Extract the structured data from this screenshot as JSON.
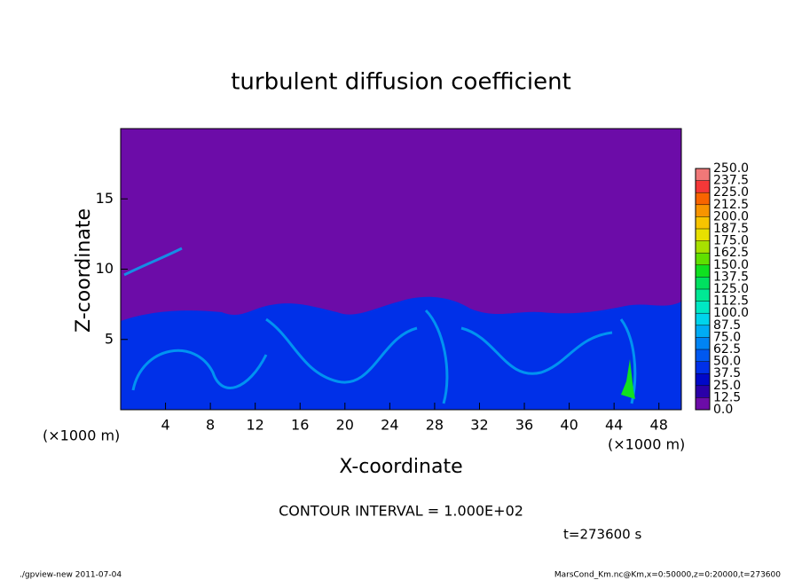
{
  "chart_data": {
    "type": "contour",
    "title": "turbulent diffusion coefficient",
    "x_label": "X-coordinate",
    "y_label": "Z-coordinate",
    "x_unit_left": "(×1000 m)",
    "x_unit_right": "(×1000 m)",
    "xlim": [
      0,
      50
    ],
    "ylim": [
      0,
      20
    ],
    "xticks": [
      4,
      8,
      12,
      16,
      20,
      24,
      28,
      32,
      36,
      40,
      44,
      48
    ],
    "yticks": [
      5,
      10,
      15
    ],
    "colorbar": {
      "levels": [
        {
          "value": 0,
          "label": "0.0"
        },
        12.5,
        {
          "value": 25,
          "label": "25.0"
        },
        37.5,
        {
          "value": 50,
          "label": "50.0"
        },
        62.5,
        {
          "value": 75,
          "label": "75.0"
        },
        87.5,
        {
          "value": 100,
          "label": "100.0"
        },
        112.5,
        {
          "value": 125,
          "label": "125.0"
        },
        137.5,
        {
          "value": 150,
          "label": "150.0"
        },
        162.5,
        {
          "value": 175,
          "label": "175.0"
        },
        187.5,
        {
          "value": 200,
          "label": "200.0"
        },
        212.5,
        {
          "value": 225,
          "label": "225.0"
        },
        237.5,
        {
          "value": 250,
          "label": "250.0"
        }
      ],
      "colors": [
        "#6c0ca8",
        "#2a00a8",
        "#0008c8",
        "#0030e8",
        "#0058f0",
        "#0084f4",
        "#00acf4",
        "#00d4ec",
        "#00e8c4",
        "#00e894",
        "#00e060",
        "#10e020",
        "#60e000",
        "#a8e000",
        "#e8e000",
        "#f8c400",
        "#f89400",
        "#f86400",
        "#f43838",
        "#f07878"
      ]
    },
    "contour_interval": "CONTOUR INTERVAL = 1.000E+02",
    "time_label": "t=273600 s",
    "footer_left": "./gpview-new  2011-07-04",
    "footer_right": "MarsCond_Km.nc@Km,x=0:50000,z=0:20000,t=273600"
  }
}
